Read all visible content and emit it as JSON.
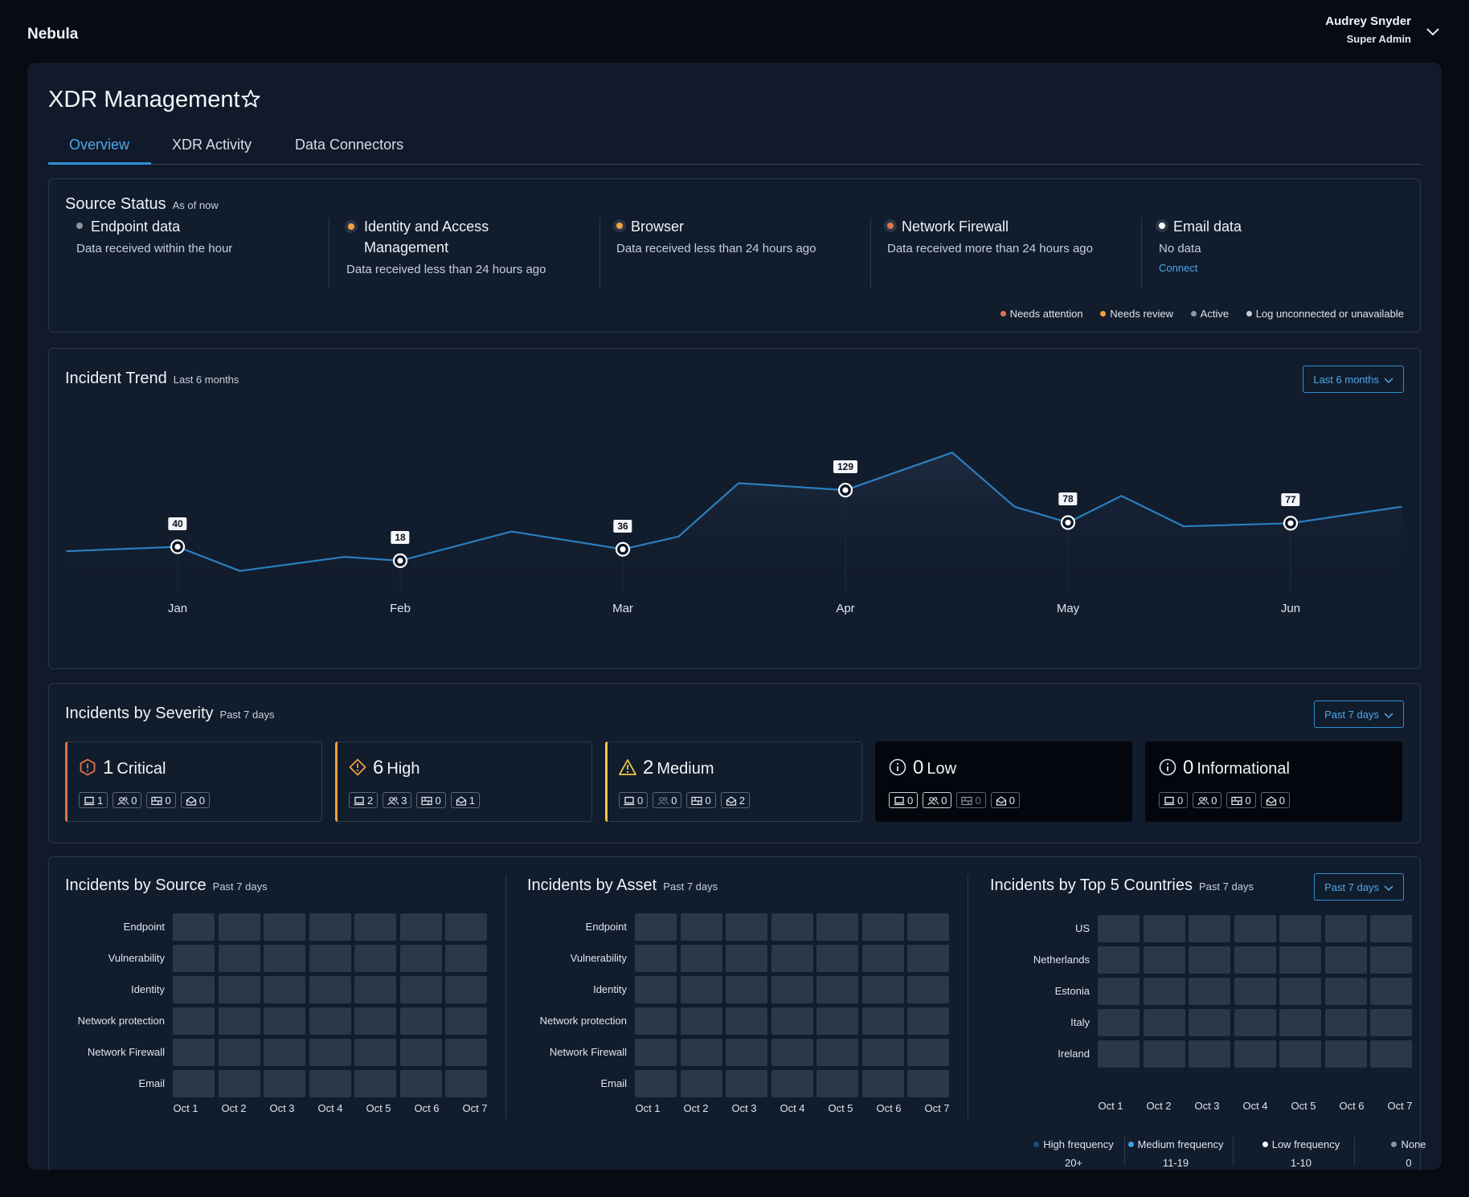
{
  "app": {
    "brand": "Nebula"
  },
  "user": {
    "name": "Audrey Snyder",
    "role": "Super Admin"
  },
  "page": {
    "title": "XDR Management"
  },
  "tabs": [
    {
      "label": "Overview",
      "active": true
    },
    {
      "label": "XDR Activity",
      "active": false
    },
    {
      "label": "Data Connectors",
      "active": false
    }
  ],
  "source_status": {
    "title": "Source Status",
    "subtitle": "As of now",
    "items": [
      {
        "name": "Endpoint data",
        "desc": "Data received within the hour",
        "status_color": "#8a94a3"
      },
      {
        "name": "Identity and Access Management",
        "desc": "Data received less than 24 hours ago",
        "status_color": "#f0a23c"
      },
      {
        "name": "Browser",
        "desc": "Data received less than 24 hours ago",
        "status_color": "#f0a23c"
      },
      {
        "name": "Network Firewall",
        "desc": "Data received more than 24 hours ago",
        "status_color": "#e0734f"
      },
      {
        "name": "Email data",
        "desc": "No data",
        "status_color": "#ffffff",
        "action": "Connect"
      }
    ],
    "legend": [
      {
        "label": "Needs attention",
        "color": "#e0734f"
      },
      {
        "label": "Needs review",
        "color": "#f0a23c"
      },
      {
        "label": "Active",
        "color": "#8a94a3"
      },
      {
        "label": "Log unconnected or unavailable",
        "color": "#c5ccd6"
      }
    ]
  },
  "incident_trend": {
    "title": "Incident Trend",
    "subtitle": "Last 6 months",
    "range_button": "Last 6 months"
  },
  "chart_data": {
    "type": "line",
    "title": "Incident Trend",
    "categories": [
      "Jan",
      "Feb",
      "Mar",
      "Apr",
      "May",
      "Jun"
    ],
    "labeled_points": [
      {
        "month": "Jan",
        "value": 40
      },
      {
        "month": "Feb",
        "value": 18
      },
      {
        "month": "Mar",
        "value": 36
      },
      {
        "month": "Apr",
        "value": 129
      },
      {
        "month": "May",
        "value": 78
      },
      {
        "month": "Jun",
        "value": 77
      }
    ],
    "series_trace": [
      {
        "x": 0.5,
        "y": 33
      },
      {
        "x": 1.0,
        "y": 40
      },
      {
        "x": 1.28,
        "y": 2
      },
      {
        "x": 1.75,
        "y": 24
      },
      {
        "x": 2.0,
        "y": 18
      },
      {
        "x": 2.5,
        "y": 64
      },
      {
        "x": 3.0,
        "y": 36
      },
      {
        "x": 3.25,
        "y": 56
      },
      {
        "x": 3.52,
        "y": 140
      },
      {
        "x": 4.0,
        "y": 129
      },
      {
        "x": 4.48,
        "y": 188
      },
      {
        "x": 4.76,
        "y": 103
      },
      {
        "x": 5.0,
        "y": 78
      },
      {
        "x": 5.24,
        "y": 120
      },
      {
        "x": 5.52,
        "y": 72
      },
      {
        "x": 6.0,
        "y": 77
      },
      {
        "x": 6.5,
        "y": 103
      }
    ],
    "ylim": [
      -30,
      220
    ]
  },
  "severity": {
    "title": "Incidents by Severity",
    "subtitle": "Past 7 days",
    "range_button": "Past 7 days",
    "cards": [
      {
        "count": "1",
        "label": "Critical",
        "accent": "#e0734f",
        "icon": "critical-hexagon-icon",
        "counts": [
          "1",
          "0",
          "0",
          "0"
        ],
        "dark": false
      },
      {
        "count": "6",
        "label": "High",
        "accent": "#f0a23c",
        "icon": "high-diamond-icon",
        "counts": [
          "2",
          "3",
          "0",
          "1"
        ],
        "dark": false
      },
      {
        "count": "2",
        "label": "Medium",
        "accent": "#f3c84a",
        "icon": "medium-triangle-icon",
        "counts": [
          "0",
          "0",
          "0",
          "2"
        ],
        "dark": false
      },
      {
        "count": "0",
        "label": "Low",
        "accent": "",
        "icon": "info-circle-icon",
        "counts": [
          "0",
          "0",
          "0",
          "0"
        ],
        "dark": true
      },
      {
        "count": "0",
        "label": "Informational",
        "accent": "",
        "icon": "info-circle-icon",
        "counts": [
          "0",
          "0",
          "0",
          "0"
        ],
        "dark": true
      }
    ]
  },
  "heatmaps": {
    "days": [
      "Oct 1",
      "Oct 2",
      "Oct 3",
      "Oct 4",
      "Oct 5",
      "Oct 6",
      "Oct 7"
    ],
    "by_source": {
      "title": "Incidents by Source",
      "subtitle": "Past 7 days",
      "rows": [
        "Endpoint",
        "Vulnerability",
        "Identity",
        "Network protection",
        "Network Firewall",
        "Email"
      ]
    },
    "by_asset": {
      "title": "Incidents by Asset",
      "subtitle": "Past 7 days",
      "rows": [
        "Endpoint",
        "Vulnerability",
        "Identity",
        "Network protection",
        "Network Firewall",
        "Email"
      ]
    },
    "by_country": {
      "title": "Incidents by Top 5 Countries",
      "subtitle": "Past 7 days",
      "range_button": "Past 7 days",
      "rows": [
        "US",
        "Netherlands",
        "Estonia",
        "Italy",
        "Ireland"
      ]
    },
    "frequency_legend": [
      {
        "label": "High frequency",
        "range": "20+",
        "color": "#1f4f7a"
      },
      {
        "label": "Medium frequency",
        "range": "11-19",
        "color": "#3aa0ea"
      },
      {
        "label": "Low frequency",
        "range": "1-10",
        "color": "#ffffff"
      },
      {
        "label": "None",
        "range": "0",
        "color": "#8a94a3"
      }
    ]
  }
}
